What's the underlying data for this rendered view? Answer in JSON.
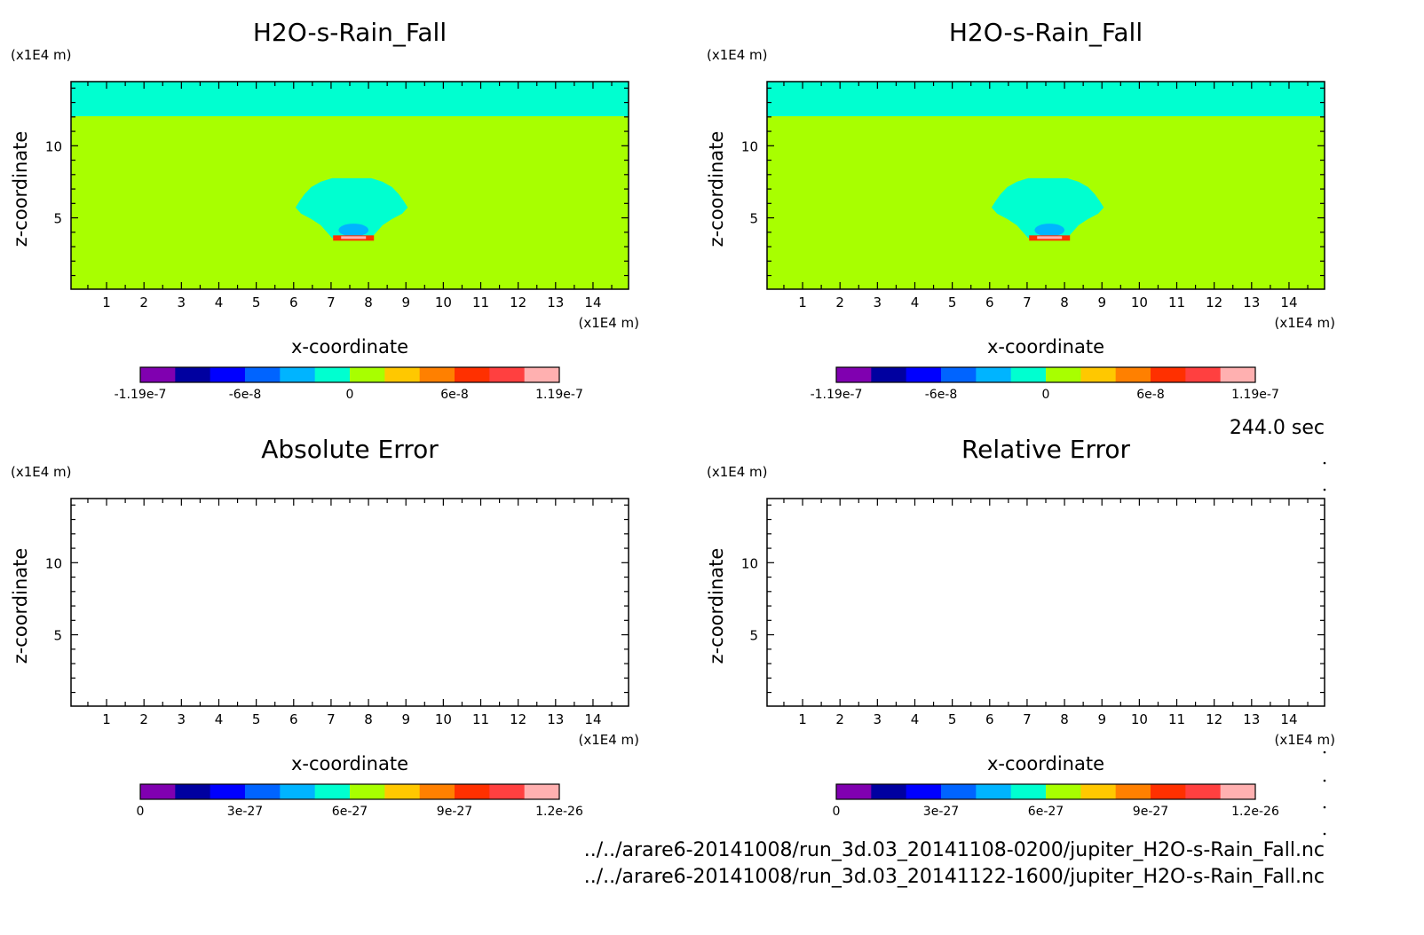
{
  "info": {
    "time_label": "244.0 sec",
    "files": [
      "../../arare6-20141008/run_3d.03_20141108-0200/jupiter_H2O-s-Rain_Fall.nc",
      "../../arare6-20141008/run_3d.03_20141122-1600/jupiter_H2O-s-Rain_Fall.nc"
    ]
  },
  "colorbar_colors": [
    "#8000b0",
    "#0000a0",
    "#0000ff",
    "#0064ff",
    "#00b4ff",
    "#00ffd0",
    "#a8ff00",
    "#ffc800",
    "#ff8000",
    "#ff3000",
    "#ff4040",
    "#ffb0b0"
  ],
  "field_colors": {
    "background": "#a8ff00",
    "top_layer": "#00ffd0",
    "cloud": "#00ffd0",
    "core": "#00b4ff",
    "bottom_rim": "#ff3000",
    "bottom_rim_inner": "#ffb0b0"
  },
  "chart_data": [
    {
      "type": "heatmap",
      "panel": "top-left",
      "title": "H2O-s-Rain_Fall",
      "xlabel": "x-coordinate",
      "ylabel": "z-coordinate",
      "x_unit": "(x1E4 m)",
      "z_unit": "(x1E4 m)",
      "xlim": [
        0.05,
        14.95
      ],
      "zlim": [
        0.05,
        14.45
      ],
      "xticks": [
        1,
        2,
        3,
        4,
        5,
        6,
        7,
        8,
        9,
        10,
        11,
        12,
        13,
        14
      ],
      "zticks": [
        5,
        10
      ],
      "field": "rain_shaft",
      "top_layer_z": [
        12.05,
        14.45
      ],
      "cloud": {
        "x": [
          6.05,
          9.05
        ],
        "z": [
          3.6,
          7.75
        ]
      },
      "core": {
        "x": [
          7.2,
          8.0
        ],
        "z": [
          3.7,
          4.6
        ]
      },
      "colorbar": {
        "labels": [
          "-1.19e-7",
          "-6e-8",
          "0",
          "6e-8",
          "1.19e-7"
        ],
        "min": -1.19e-07,
        "max": 1.19e-07
      }
    },
    {
      "type": "heatmap",
      "panel": "top-right",
      "title": "H2O-s-Rain_Fall",
      "xlabel": "x-coordinate",
      "ylabel": "z-coordinate",
      "x_unit": "(x1E4 m)",
      "z_unit": "(x1E4 m)",
      "xlim": [
        0.05,
        14.95
      ],
      "zlim": [
        0.05,
        14.45
      ],
      "xticks": [
        1,
        2,
        3,
        4,
        5,
        6,
        7,
        8,
        9,
        10,
        11,
        12,
        13,
        14
      ],
      "zticks": [
        5,
        10
      ],
      "field": "rain_shaft",
      "top_layer_z": [
        12.05,
        14.45
      ],
      "cloud": {
        "x": [
          6.05,
          9.05
        ],
        "z": [
          3.6,
          7.75
        ]
      },
      "core": {
        "x": [
          7.2,
          8.0
        ],
        "z": [
          3.7,
          4.6
        ]
      },
      "colorbar": {
        "labels": [
          "-1.19e-7",
          "-6e-8",
          "0",
          "6e-8",
          "1.19e-7"
        ],
        "min": -1.19e-07,
        "max": 1.19e-07
      }
    },
    {
      "type": "heatmap",
      "panel": "bottom-left",
      "title": "Absolute Error",
      "xlabel": "x-coordinate",
      "ylabel": "z-coordinate",
      "x_unit": "(x1E4 m)",
      "z_unit": "(x1E4 m)",
      "xlim": [
        0.05,
        14.95
      ],
      "zlim": [
        0.05,
        14.45
      ],
      "xticks": [
        1,
        2,
        3,
        4,
        5,
        6,
        7,
        8,
        9,
        10,
        11,
        12,
        13,
        14
      ],
      "zticks": [
        5,
        10
      ],
      "field": "empty",
      "colorbar": {
        "labels": [
          "0",
          "3e-27",
          "6e-27",
          "9e-27",
          "1.2e-26"
        ],
        "min": 0,
        "max": 1.2e-26
      }
    },
    {
      "type": "heatmap",
      "panel": "bottom-right",
      "title": "Relative Error",
      "xlabel": "x-coordinate",
      "ylabel": "z-coordinate",
      "x_unit": "(x1E4 m)",
      "z_unit": "(x1E4 m)",
      "xlim": [
        0.05,
        14.95
      ],
      "zlim": [
        0.05,
        14.45
      ],
      "xticks": [
        1,
        2,
        3,
        4,
        5,
        6,
        7,
        8,
        9,
        10,
        11,
        12,
        13,
        14
      ],
      "zticks": [
        5,
        10
      ],
      "field": "empty",
      "colorbar": {
        "labels": [
          "0",
          "3e-27",
          "6e-27",
          "9e-27",
          "1.2e-26"
        ],
        "min": 0,
        "max": 1.2e-26
      }
    }
  ]
}
